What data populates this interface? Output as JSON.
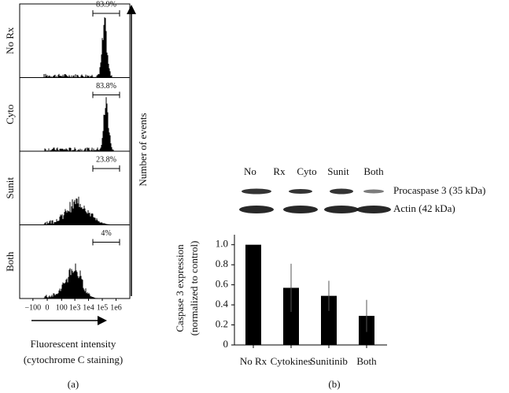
{
  "chart_data": [
    {
      "type": "flow-histogram",
      "panel_label": "(a)",
      "ylabel": "Number of events",
      "xlabel": "Fluorescent intensity",
      "xlabel_note": "(cytochrome C staining)",
      "categories": [
        "No Rx",
        "Cyto",
        "Sunit",
        "Both"
      ],
      "values": [
        83.9,
        83.8,
        23.8,
        4
      ],
      "value_labels": [
        "83.9%",
        "83.8%",
        "23.8%",
        "4%"
      ],
      "xscale": "symlog",
      "xlim": [
        -1000,
        10000000
      ],
      "xticks": [
        {
          "value": -100,
          "label": "−100"
        },
        0,
        100,
        {
          "value": 1000,
          "label": "1e3"
        },
        {
          "value": 10000,
          "label": "1e4"
        },
        {
          "value": 100000,
          "label": "1e5"
        },
        {
          "value": 1000000,
          "label": "1e6"
        }
      ]
    },
    {
      "type": "bar",
      "panel_label": "(b)",
      "ylabel": "Caspase 3 expression",
      "ylabel_note": "(normalized to control)",
      "categories": [
        "No Rx",
        "Cytokines",
        "Sunitinib",
        "Both"
      ],
      "values": [
        1,
        0.57,
        0.49,
        0.29
      ],
      "errors": [
        null,
        0.24,
        0.15,
        0.16
      ],
      "color": "#000000",
      "ylim": [
        0,
        1.1
      ],
      "yticks": [
        0,
        0.2,
        0.4,
        0.6,
        0.8,
        {
          "value": 1,
          "label": "1.0"
        }
      ],
      "blot": {
        "lanes": [
          "No",
          "Rx",
          "Cyto",
          "Sunit",
          "Both"
        ],
        "bands": [
          "Procaspase 3 (35 kDa)",
          "Actin (42 kDa)"
        ]
      }
    }
  ]
}
